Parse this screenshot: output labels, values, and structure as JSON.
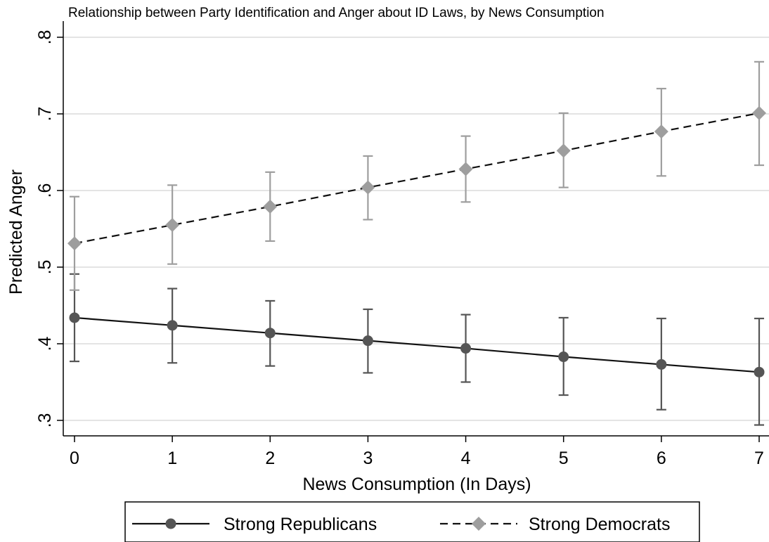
{
  "chart_data": {
    "type": "line",
    "title": "Relationship between Party Identification and Anger about ID Laws, by News Consumption",
    "xlabel": "News Consumption (In Days)",
    "ylabel": "Predicted Anger",
    "x": [
      0,
      1,
      2,
      3,
      4,
      5,
      6,
      7
    ],
    "x_ticks": [
      "0",
      "1",
      "2",
      "3",
      "4",
      "5",
      "6",
      "7"
    ],
    "y_ticks": [
      {
        "value": 0.3,
        "label": ".3"
      },
      {
        "value": 0.4,
        "label": ".4"
      },
      {
        "value": 0.5,
        "label": ".5"
      },
      {
        "value": 0.6,
        "label": ".6"
      },
      {
        "value": 0.7,
        "label": ".7"
      },
      {
        "value": 0.8,
        "label": ".8"
      }
    ],
    "xlim": [
      0,
      7
    ],
    "ylim": [
      0.3,
      0.8
    ],
    "grid": true,
    "legend_position": "bottom",
    "series": [
      {
        "name": "Strong Republicans",
        "values": [
          0.434,
          0.424,
          0.414,
          0.404,
          0.394,
          0.383,
          0.373,
          0.363
        ],
        "ci_low": [
          0.377,
          0.375,
          0.371,
          0.362,
          0.35,
          0.333,
          0.314,
          0.294
        ],
        "ci_high": [
          0.491,
          0.472,
          0.456,
          0.445,
          0.438,
          0.434,
          0.433,
          0.433
        ],
        "color": "#111111",
        "marker_color": "#555555",
        "errorbar_color": "#555555",
        "line_style": "solid",
        "marker": "circle"
      },
      {
        "name": "Strong Democrats",
        "values": [
          0.531,
          0.555,
          0.579,
          0.604,
          0.628,
          0.652,
          0.677,
          0.701
        ],
        "ci_low": [
          0.47,
          0.504,
          0.534,
          0.562,
          0.585,
          0.604,
          0.619,
          0.633
        ],
        "ci_high": [
          0.592,
          0.607,
          0.624,
          0.645,
          0.671,
          0.701,
          0.733,
          0.768
        ],
        "color": "#111111",
        "marker_color": "#9e9e9e",
        "errorbar_color": "#9e9e9e",
        "line_style": "dashed",
        "marker": "diamond"
      }
    ]
  }
}
